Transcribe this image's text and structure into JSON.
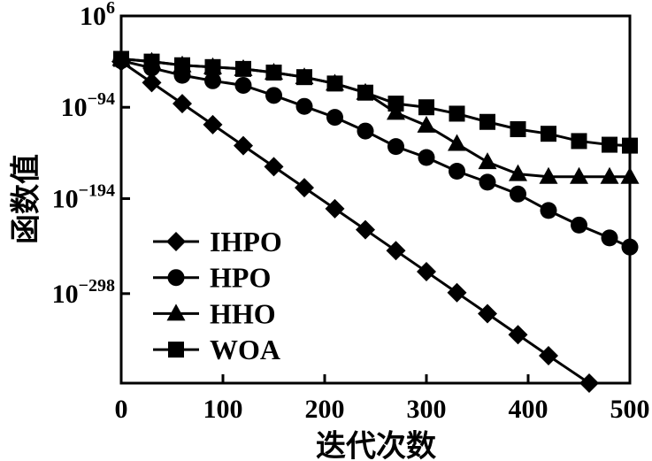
{
  "figure": {
    "background_color": "#ffffff",
    "line_color": "#000000"
  },
  "chart_data": {
    "type": "line",
    "title": "",
    "xlabel": "迭代次数",
    "ylabel": "函数值",
    "y_scale": "log10",
    "x_range": [
      0,
      500
    ],
    "x_ticks": [
      0,
      100,
      200,
      300,
      400,
      500
    ],
    "y_range_exp": [
      6,
      -396
    ],
    "y_ticks": [
      {
        "exp": 6,
        "base": "10",
        "exponent": "6"
      },
      {
        "exp": -94,
        "base": "10",
        "exponent": "−94"
      },
      {
        "exp": -194,
        "base": "10",
        "exponent": "−194"
      },
      {
        "exp": -298,
        "base": "10",
        "exponent": "−298"
      }
    ],
    "grid": false,
    "legend": {
      "position": "inside-lower-left",
      "items": [
        "IHPO",
        "HPO",
        "HHO",
        "WOA"
      ]
    },
    "series": [
      {
        "name": "IHPO",
        "marker": "diamond",
        "color": "#000000",
        "x": [
          0,
          30,
          60,
          90,
          120,
          150,
          180,
          210,
          240,
          270,
          300,
          330,
          360,
          390,
          420,
          460
        ],
        "y_exp": [
          -44,
          -67,
          -90,
          -113,
          -136,
          -159,
          -182,
          -205,
          -228,
          -251,
          -274,
          -297,
          -320,
          -343,
          -366,
          -396
        ]
      },
      {
        "name": "HPO",
        "marker": "circle",
        "color": "#000000",
        "x": [
          0,
          30,
          60,
          90,
          120,
          150,
          180,
          210,
          240,
          270,
          300,
          330,
          360,
          390,
          420,
          450,
          480,
          500
        ],
        "y_exp": [
          -43,
          -51,
          -59,
          -65,
          -70,
          -81,
          -93,
          -105,
          -120,
          -137,
          -149,
          -164,
          -176,
          -189,
          -207,
          -223,
          -237,
          -247
        ]
      },
      {
        "name": "HHO",
        "marker": "triangle",
        "color": "#000000",
        "x": [
          0,
          30,
          60,
          90,
          120,
          150,
          180,
          210,
          240,
          270,
          300,
          330,
          360,
          390,
          420,
          450,
          480,
          500
        ],
        "y_exp": [
          -41,
          -44,
          -48,
          -50,
          -52,
          -56,
          -61,
          -68,
          -78,
          -100,
          -114,
          -134,
          -154,
          -167,
          -170,
          -170,
          -170,
          -170
        ]
      },
      {
        "name": "WOA",
        "marker": "square",
        "color": "#000000",
        "x": [
          0,
          30,
          60,
          90,
          120,
          150,
          180,
          210,
          240,
          270,
          300,
          330,
          360,
          390,
          420,
          450,
          480,
          500
        ],
        "y_exp": [
          -41,
          -44,
          -48,
          -50,
          -52,
          -56,
          -61,
          -68,
          -78,
          -90,
          -94,
          -101,
          -110,
          -118,
          -123,
          -131,
          -135,
          -136
        ]
      }
    ]
  }
}
